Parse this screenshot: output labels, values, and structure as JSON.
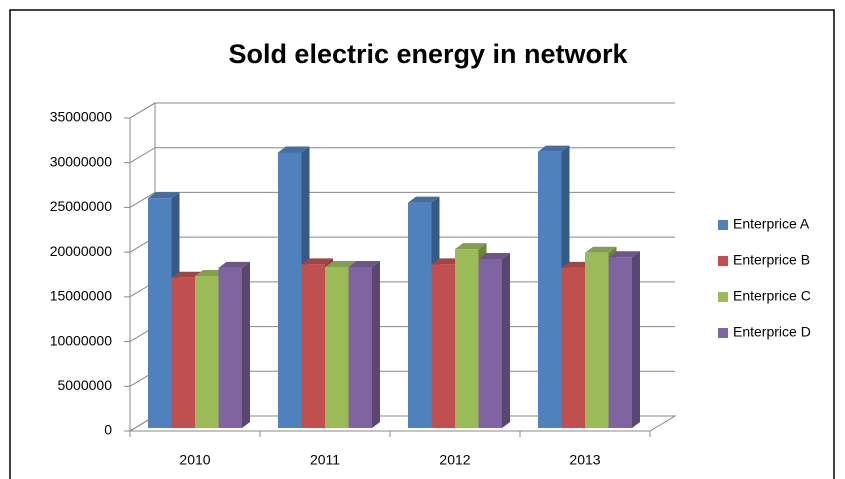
{
  "chart_data": {
    "type": "bar3d",
    "title": "Sold electric energy in network",
    "categories": [
      "2010",
      "2011",
      "2012",
      "2013"
    ],
    "series": [
      {
        "name": "Enterprice A",
        "color": "#4f81bd",
        "values": [
          25700000,
          30800000,
          25200000,
          30900000
        ]
      },
      {
        "name": "Enterprice B",
        "color": "#c0504d",
        "values": [
          16800000,
          18300000,
          18300000,
          17900000
        ]
      },
      {
        "name": "Enterprice C",
        "color": "#9bbb59",
        "values": [
          17000000,
          18000000,
          20000000,
          19600000
        ]
      },
      {
        "name": "Enterprice D",
        "color": "#8064a2",
        "values": [
          17900000,
          18000000,
          18900000,
          19100000
        ]
      }
    ],
    "ylim": [
      0,
      35000000
    ],
    "yticks": [
      0,
      5000000,
      10000000,
      15000000,
      20000000,
      25000000,
      30000000,
      35000000
    ],
    "grid": true,
    "legend": "right"
  }
}
